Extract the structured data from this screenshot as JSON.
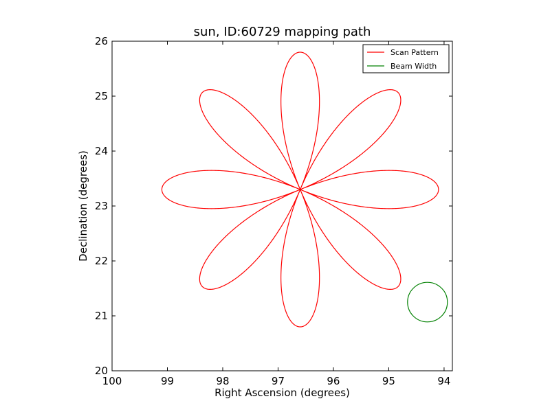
{
  "chart_data": {
    "type": "line",
    "title": "sun, ID:60729 mapping path",
    "xlabel": "Right Ascension (degrees)",
    "ylabel": "Declination (degrees)",
    "xlim": [
      100.0,
      93.85
    ],
    "ylim": [
      20,
      26
    ],
    "x_ticks": [
      100,
      99,
      98,
      97,
      96,
      95,
      94
    ],
    "y_ticks": [
      20,
      21,
      22,
      23,
      24,
      25,
      26
    ],
    "x_tick_labels": [
      "100",
      "99",
      "98",
      "97",
      "96",
      "95",
      "94"
    ],
    "y_tick_labels": [
      "20",
      "21",
      "22",
      "23",
      "24",
      "25",
      "26"
    ],
    "legend_position": "top-right",
    "series": [
      {
        "name": "Scan Pattern",
        "color": "#ff0000",
        "pattern": "rose",
        "center": [
          96.6,
          23.3
        ],
        "petals": 8,
        "petal_length_deg": 2.5,
        "petal_half_width_deg": 0.36
      },
      {
        "name": "Beam Width",
        "color": "#008000",
        "pattern": "circle",
        "center": [
          94.3,
          21.25
        ],
        "radius_deg": 0.36
      }
    ]
  }
}
